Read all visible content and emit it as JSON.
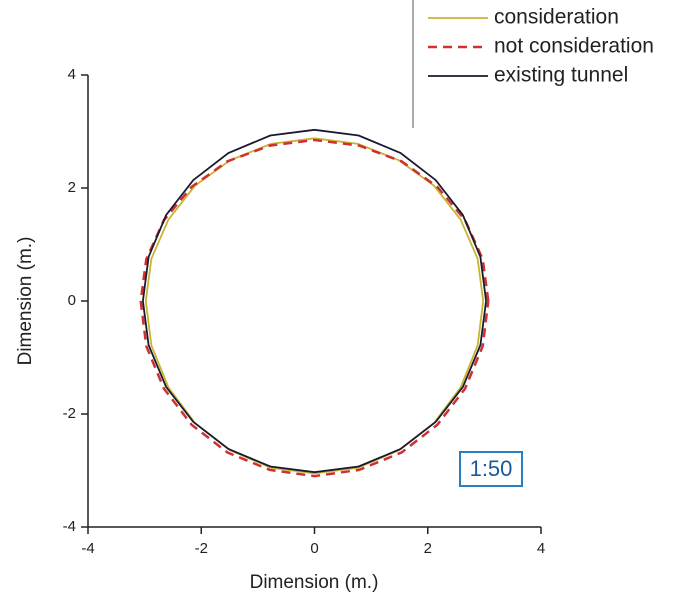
{
  "chart_data": {
    "type": "line",
    "xlabel": "Dimension (m.)",
    "ylabel": "Dimension (m.)",
    "annotation": "1:50",
    "xlim": [
      -4,
      4
    ],
    "ylim": [
      -4,
      4
    ],
    "xticks": [
      -4,
      -2,
      0,
      2,
      4
    ],
    "yticks": [
      -4,
      -2,
      0,
      2,
      4
    ],
    "grid": false,
    "legend": "top-right",
    "series": [
      {
        "name": "consideration",
        "color": "#c8b432",
        "dash": "solid",
        "x": [
          2.98,
          2.88,
          2.58,
          2.11,
          1.49,
          0.77,
          0,
          -0.77,
          -1.49,
          -2.11,
          -2.58,
          -2.88,
          -2.98,
          -2.88,
          -2.58,
          -2.11,
          -1.49,
          -0.77,
          0,
          0.77,
          1.49,
          2.11,
          2.58,
          2.88,
          2.98
        ],
        "y": [
          0,
          0.75,
          1.44,
          2.04,
          2.49,
          2.78,
          2.88,
          2.78,
          2.49,
          2.04,
          1.44,
          0.75,
          0,
          -0.79,
          -1.53,
          -2.16,
          -2.64,
          -2.95,
          -3.05,
          -2.95,
          -2.64,
          -2.16,
          -1.53,
          -0.79,
          0
        ]
      },
      {
        "name": "not consideration",
        "color": "#d03030",
        "dash": "dashed",
        "x": [
          3.07,
          2.97,
          2.66,
          2.17,
          1.54,
          0.79,
          0,
          -0.79,
          -1.54,
          -2.17,
          -2.66,
          -2.97,
          -3.07,
          -2.97,
          -2.66,
          -2.17,
          -1.54,
          -0.79,
          0,
          0.79,
          1.54,
          2.17,
          2.66,
          2.97,
          3.07
        ],
        "y": [
          0,
          0.74,
          1.43,
          2.02,
          2.47,
          2.75,
          2.85,
          2.75,
          2.47,
          2.02,
          1.43,
          0.74,
          0,
          -0.8,
          -1.55,
          -2.19,
          -2.68,
          -2.99,
          -3.1,
          -2.99,
          -2.68,
          -2.19,
          -1.55,
          -0.8,
          0
        ]
      },
      {
        "name": "existing tunnel",
        "color": "#1a1a2e",
        "dash": "solid",
        "x": [
          3.03,
          2.93,
          2.62,
          2.14,
          1.52,
          0.78,
          0,
          -0.78,
          -1.52,
          -2.14,
          -2.62,
          -2.93,
          -3.03,
          -2.93,
          -2.62,
          -2.14,
          -1.52,
          -0.78,
          0,
          0.78,
          1.52,
          2.14,
          2.62,
          2.93,
          3.03
        ],
        "y": [
          0,
          0.78,
          1.52,
          2.14,
          2.62,
          2.93,
          3.03,
          2.93,
          2.62,
          2.14,
          1.52,
          0.78,
          0,
          -0.78,
          -1.52,
          -2.14,
          -2.62,
          -2.93,
          -3.03,
          -2.93,
          -2.62,
          -2.14,
          -1.52,
          -0.78,
          0
        ]
      }
    ]
  }
}
